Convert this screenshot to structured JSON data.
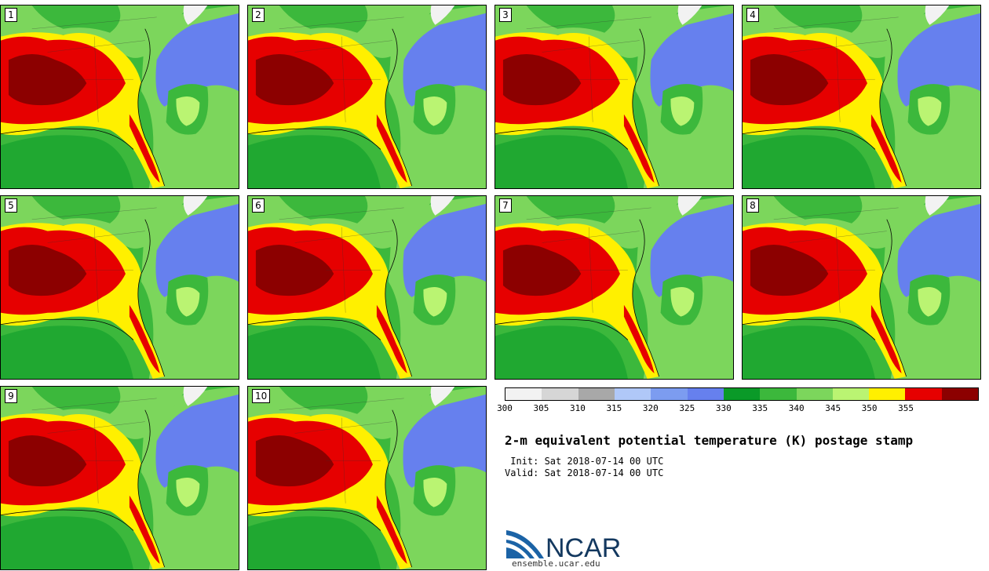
{
  "panels": [
    {
      "label": "1"
    },
    {
      "label": "2"
    },
    {
      "label": "3"
    },
    {
      "label": "4"
    },
    {
      "label": "5"
    },
    {
      "label": "6"
    },
    {
      "label": "7"
    },
    {
      "label": "8"
    },
    {
      "label": "9"
    },
    {
      "label": "10"
    }
  ],
  "colorbar": {
    "ticks": [
      "300",
      "305",
      "310",
      "315",
      "320",
      "325",
      "330",
      "335",
      "340",
      "345",
      "350",
      "355"
    ],
    "colors": [
      "#f2f2f2",
      "#d6d6d6",
      "#a8a8a8",
      "#b0c8f8",
      "#7c9cf0",
      "#6680ee",
      "#0a9a28",
      "#3cb83c",
      "#7cd65c",
      "#baf472",
      "#fff000",
      "#e60000",
      "#8c0000"
    ]
  },
  "title": "2-m equivalent potential temperature (K) postage stamp",
  "init": " Init: Sat 2018-07-14 00 UTC",
  "valid": "Valid: Sat 2018-07-14 00 UTC",
  "logo": {
    "text": "NCAR",
    "site": "ensemble.ucar.edu"
  }
}
